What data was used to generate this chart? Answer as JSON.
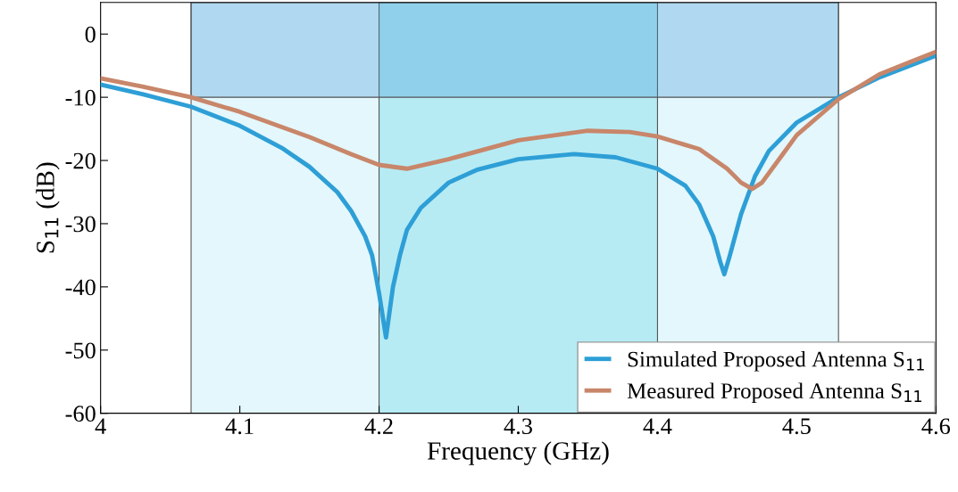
{
  "chart_data": {
    "type": "line",
    "xlabel": "Frequency (GHz)",
    "ylabel": "S$_{11}$ (dB)",
    "xlim": [
      4,
      4.6
    ],
    "ylim": [
      -60,
      5
    ],
    "xticks": [
      4,
      4.1,
      4.2,
      4.3,
      4.4,
      4.5,
      4.6
    ],
    "yticks": [
      -60,
      -50,
      -40,
      -30,
      -20,
      -10,
      0
    ],
    "legend": "bottom right",
    "grid": false,
    "bands": [
      {
        "axis": "x",
        "from": 4.065,
        "to": 4.53,
        "color": "#a2e4f5"
      },
      {
        "axis": "x",
        "from": 4.2,
        "to": 4.4,
        "color": "#4fcfe0"
      },
      {
        "axis": "y",
        "from": -10,
        "to": 5,
        "color": "#3d93d4"
      }
    ],
    "series": [
      {
        "name": "Simulated Proposed Antenna S$_{11}$",
        "color": "#2e9fd6",
        "x": [
          4,
          4.03,
          4.065,
          4.1,
          4.13,
          4.15,
          4.17,
          4.18,
          4.19,
          4.195,
          4.2,
          4.205,
          4.21,
          4.215,
          4.22,
          4.23,
          4.25,
          4.27,
          4.3,
          4.34,
          4.37,
          4.4,
          4.42,
          4.43,
          4.44,
          4.445,
          4.448,
          4.452,
          4.46,
          4.47,
          4.48,
          4.5,
          4.53,
          4.56,
          4.6
        ],
        "values": [
          -8,
          -9.5,
          -11.5,
          -14.5,
          -18,
          -21,
          -25,
          -28,
          -32,
          -35,
          -41,
          -48,
          -40,
          -35,
          -31,
          -27.5,
          -23.5,
          -21.5,
          -19.8,
          -19,
          -19.5,
          -21.3,
          -24,
          -27,
          -32,
          -36,
          -38,
          -35,
          -28.5,
          -22.5,
          -18.5,
          -14,
          -10,
          -6.8,
          -3.4
        ]
      },
      {
        "name": "Measured Proposed Antenna S$_{11}$",
        "color": "#c8866a",
        "x": [
          4,
          4.03,
          4.065,
          4.1,
          4.15,
          4.18,
          4.2,
          4.22,
          4.25,
          4.3,
          4.35,
          4.38,
          4.4,
          4.43,
          4.45,
          4.46,
          4.468,
          4.475,
          4.49,
          4.5,
          4.53,
          4.56,
          4.6
        ],
        "values": [
          -7,
          -8.3,
          -10,
          -12.3,
          -16.3,
          -19,
          -20.7,
          -21.3,
          -19.8,
          -16.8,
          -15.3,
          -15.5,
          -16.2,
          -18.2,
          -21.3,
          -23.5,
          -24.5,
          -23.5,
          -19,
          -16,
          -10.3,
          -6.3,
          -2.8
        ]
      }
    ]
  }
}
